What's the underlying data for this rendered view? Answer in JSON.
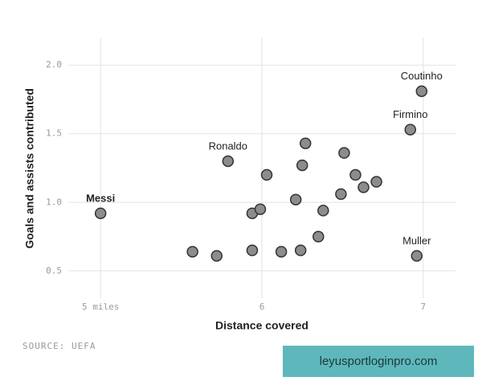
{
  "chart_data": {
    "type": "scatter",
    "x_label": "Distance covered",
    "y_label": "Goals and assists contributed",
    "source": "SOURCE: UEFA",
    "watermark": "leyusportloginpro.com",
    "xlim": [
      4.8,
      7.2
    ],
    "ylim": [
      0.3,
      2.2
    ],
    "xticks": [
      {
        "value": 5,
        "label": "5 miles"
      },
      6,
      7
    ],
    "yticks": [
      0.5,
      {
        "value": 1.0,
        "label": "1.0"
      },
      1.5,
      {
        "value": 2.0,
        "label": "2.0"
      }
    ],
    "grid": true,
    "color": "#8c8c8c",
    "x": [
      5.0,
      5.79,
      6.99,
      6.92,
      6.96,
      5.57,
      5.72,
      5.94,
      6.12,
      6.24,
      6.35,
      6.38,
      5.94,
      5.99,
      6.21,
      6.49,
      6.63,
      6.71,
      6.58,
      6.03,
      6.25,
      6.51,
      6.27
    ],
    "y": [
      0.92,
      1.3,
      1.81,
      1.53,
      0.61,
      0.64,
      0.61,
      0.65,
      0.64,
      0.65,
      0.75,
      0.94,
      0.92,
      0.95,
      1.02,
      1.06,
      1.11,
      1.15,
      1.2,
      1.2,
      1.27,
      1.36,
      1.43
    ],
    "point_labels": [
      "Messi",
      "Ronaldo",
      "Coutinho",
      "Firmino",
      "Muller",
      null,
      null,
      null,
      null,
      null,
      null,
      null,
      null,
      null,
      null,
      null,
      null,
      null,
      null,
      null,
      null,
      null,
      null
    ],
    "highlight": "Messi"
  }
}
